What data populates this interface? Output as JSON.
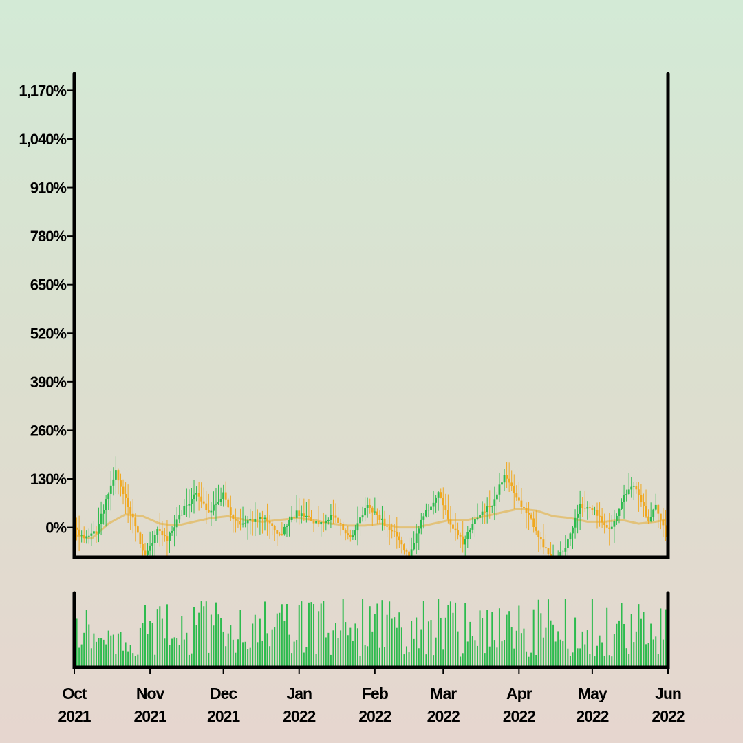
{
  "chart_data": {
    "type": "candlestick",
    "title": "",
    "xlabel": "",
    "ylabel": "",
    "y_ticks": [
      "0%",
      "130%",
      "260%",
      "390%",
      "520%",
      "650%",
      "780%",
      "910%",
      "1,040%",
      "1,170%"
    ],
    "ylim": [
      -80,
      1215
    ],
    "x_ticks": [
      {
        "month": "Oct",
        "year": "2021"
      },
      {
        "month": "Nov",
        "year": "2021"
      },
      {
        "month": "Dec",
        "year": "2021"
      },
      {
        "month": "Jan",
        "year": "2022"
      },
      {
        "month": "Feb",
        "year": "2022"
      },
      {
        "month": "Mar",
        "year": "2022"
      },
      {
        "month": "Apr",
        "year": "2022"
      },
      {
        "month": "May",
        "year": "2022"
      },
      {
        "month": "Jun",
        "year": "2022"
      }
    ],
    "xlim": [
      "2021-10-01",
      "2022-06-01"
    ],
    "colors": {
      "up": "#2dbb4e",
      "down": "#f0a820",
      "moving_average": "#e2c27a",
      "volume": "#2dbb4e",
      "axis": "#000000"
    },
    "close_anchors_pct": [
      [
        "2021-10-01",
        0
      ],
      [
        "2021-10-05",
        -30
      ],
      [
        "2021-10-10",
        -10
      ],
      [
        "2021-10-18",
        150
      ],
      [
        "2021-10-25",
        20
      ],
      [
        "2021-10-30",
        -80
      ],
      [
        "2021-11-04",
        -10
      ],
      [
        "2021-11-08",
        -30
      ],
      [
        "2021-11-15",
        50
      ],
      [
        "2021-11-20",
        90
      ],
      [
        "2021-11-25",
        40
      ],
      [
        "2021-12-01",
        90
      ],
      [
        "2021-12-05",
        20
      ],
      [
        "2021-12-10",
        10
      ],
      [
        "2021-12-18",
        30
      ],
      [
        "2021-12-24",
        -20
      ],
      [
        "2021-12-31",
        40
      ],
      [
        "2022-01-08",
        10
      ],
      [
        "2022-01-15",
        30
      ],
      [
        "2022-01-22",
        -30
      ],
      [
        "2022-01-29",
        60
      ],
      [
        "2022-02-05",
        10
      ],
      [
        "2022-02-10",
        -20
      ],
      [
        "2022-02-15",
        -80
      ],
      [
        "2022-02-20",
        20
      ],
      [
        "2022-02-27",
        90
      ],
      [
        "2022-03-04",
        10
      ],
      [
        "2022-03-09",
        -40
      ],
      [
        "2022-03-15",
        30
      ],
      [
        "2022-03-21",
        60
      ],
      [
        "2022-03-26",
        140
      ],
      [
        "2022-04-01",
        70
      ],
      [
        "2022-04-06",
        20
      ],
      [
        "2022-04-12",
        -60
      ],
      [
        "2022-04-16",
        -90
      ],
      [
        "2022-04-20",
        -50
      ],
      [
        "2022-04-26",
        60
      ],
      [
        "2022-05-02",
        40
      ],
      [
        "2022-05-08",
        -10
      ],
      [
        "2022-05-14",
        80
      ],
      [
        "2022-05-18",
        110
      ],
      [
        "2022-05-24",
        20
      ],
      [
        "2022-05-27",
        60
      ],
      [
        "2022-05-31",
        -20
      ]
    ],
    "moving_average_pct": [
      [
        "2021-10-01",
        -20
      ],
      [
        "2021-10-08",
        -30
      ],
      [
        "2021-10-15",
        10
      ],
      [
        "2021-10-22",
        35
      ],
      [
        "2021-10-29",
        30
      ],
      [
        "2021-11-05",
        10
      ],
      [
        "2021-11-12",
        5
      ],
      [
        "2021-11-19",
        15
      ],
      [
        "2021-11-26",
        25
      ],
      [
        "2021-12-03",
        30
      ],
      [
        "2021-12-10",
        20
      ],
      [
        "2021-12-17",
        15
      ],
      [
        "2021-12-24",
        20
      ],
      [
        "2021-12-31",
        25
      ],
      [
        "2022-01-07",
        20
      ],
      [
        "2022-01-14",
        10
      ],
      [
        "2022-01-21",
        5
      ],
      [
        "2022-01-28",
        5
      ],
      [
        "2022-02-04",
        10
      ],
      [
        "2022-02-11",
        0
      ],
      [
        "2022-02-18",
        0
      ],
      [
        "2022-02-25",
        10
      ],
      [
        "2022-03-04",
        20
      ],
      [
        "2022-03-11",
        20
      ],
      [
        "2022-03-18",
        30
      ],
      [
        "2022-03-25",
        40
      ],
      [
        "2022-04-01",
        50
      ],
      [
        "2022-04-08",
        45
      ],
      [
        "2022-04-15",
        30
      ],
      [
        "2022-04-22",
        25
      ],
      [
        "2022-04-29",
        15
      ],
      [
        "2022-05-06",
        15
      ],
      [
        "2022-05-13",
        20
      ],
      [
        "2022-05-20",
        10
      ],
      [
        "2022-05-27",
        15
      ],
      [
        "2022-05-31",
        20
      ]
    ]
  }
}
